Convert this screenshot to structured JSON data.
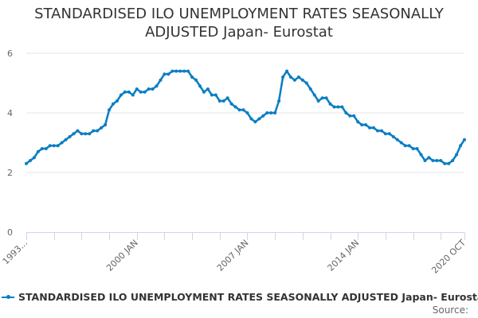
{
  "chart_data": {
    "type": "line",
    "title": "STANDARDISED ILO UNEMPLOYMENT RATES SEASONALLY ADJUSTED Japan- Eurostat",
    "xlabel": "",
    "ylabel": "",
    "ylim": [
      0,
      6
    ],
    "yticks": [
      "0",
      "2",
      "4",
      "6"
    ],
    "xrange": [
      "1993-01",
      "2020-10"
    ],
    "xtick_labels": [
      {
        "date": "1993-01",
        "label": "1993..."
      },
      {
        "date": "2000-01",
        "label": "2000 JAN"
      },
      {
        "date": "2007-01",
        "label": "2007 JAN"
      },
      {
        "date": "2014-01",
        "label": "2014 JAN"
      },
      {
        "date": "2020-10",
        "label": "2020 OCT"
      }
    ],
    "grid": true,
    "legend_placement": "bottom",
    "color": "#0a7ec2",
    "series": [
      {
        "name": "STANDARDISED ILO UNEMPLOYMENT RATES SEASONALLY ADJUSTED Japan- Eurostat",
        "x": [
          "1993-01",
          "1993-04",
          "1993-07",
          "1993-10",
          "1994-01",
          "1994-04",
          "1994-07",
          "1994-10",
          "1995-01",
          "1995-04",
          "1995-07",
          "1995-10",
          "1996-01",
          "1996-04",
          "1996-07",
          "1996-10",
          "1997-01",
          "1997-04",
          "1997-07",
          "1997-10",
          "1998-01",
          "1998-04",
          "1998-07",
          "1998-10",
          "1999-01",
          "1999-04",
          "1999-07",
          "1999-10",
          "2000-01",
          "2000-04",
          "2000-07",
          "2000-10",
          "2001-01",
          "2001-04",
          "2001-07",
          "2001-10",
          "2002-01",
          "2002-04",
          "2002-07",
          "2002-10",
          "2003-01",
          "2003-04",
          "2003-07",
          "2003-10",
          "2004-01",
          "2004-04",
          "2004-07",
          "2004-10",
          "2005-01",
          "2005-04",
          "2005-07",
          "2005-10",
          "2006-01",
          "2006-04",
          "2006-07",
          "2006-10",
          "2007-01",
          "2007-04",
          "2007-07",
          "2007-10",
          "2008-01",
          "2008-04",
          "2008-07",
          "2008-10",
          "2009-01",
          "2009-04",
          "2009-07",
          "2009-10",
          "2010-01",
          "2010-04",
          "2010-07",
          "2010-10",
          "2011-01",
          "2011-04",
          "2011-07",
          "2011-10",
          "2012-01",
          "2012-04",
          "2012-07",
          "2012-10",
          "2013-01",
          "2013-04",
          "2013-07",
          "2013-10",
          "2014-01",
          "2014-04",
          "2014-07",
          "2014-10",
          "2015-01",
          "2015-04",
          "2015-07",
          "2015-10",
          "2016-01",
          "2016-04",
          "2016-07",
          "2016-10",
          "2017-01",
          "2017-04",
          "2017-07",
          "2017-10",
          "2018-01",
          "2018-04",
          "2018-07",
          "2018-10",
          "2019-01",
          "2019-04",
          "2019-07",
          "2019-10",
          "2020-01",
          "2020-04",
          "2020-07",
          "2020-10"
        ],
        "values": [
          2.3,
          2.4,
          2.5,
          2.7,
          2.8,
          2.8,
          2.9,
          2.9,
          2.9,
          3.0,
          3.1,
          3.2,
          3.3,
          3.4,
          3.3,
          3.3,
          3.3,
          3.4,
          3.4,
          3.5,
          3.6,
          4.1,
          4.3,
          4.4,
          4.6,
          4.7,
          4.7,
          4.6,
          4.8,
          4.7,
          4.7,
          4.8,
          4.8,
          4.9,
          5.1,
          5.3,
          5.3,
          5.4,
          5.4,
          5.4,
          5.4,
          5.4,
          5.2,
          5.1,
          4.9,
          4.7,
          4.8,
          4.6,
          4.6,
          4.4,
          4.4,
          4.5,
          4.3,
          4.2,
          4.1,
          4.1,
          4.0,
          3.8,
          3.7,
          3.8,
          3.9,
          4.0,
          4.0,
          4.0,
          4.4,
          5.2,
          5.4,
          5.2,
          5.1,
          5.2,
          5.1,
          5.0,
          4.8,
          4.6,
          4.4,
          4.5,
          4.5,
          4.3,
          4.2,
          4.2,
          4.2,
          4.0,
          3.9,
          3.9,
          3.7,
          3.6,
          3.6,
          3.5,
          3.5,
          3.4,
          3.4,
          3.3,
          3.3,
          3.2,
          3.1,
          3.0,
          2.9,
          2.9,
          2.8,
          2.8,
          2.6,
          2.4,
          2.5,
          2.4,
          2.4,
          2.4,
          2.3,
          2.3,
          2.4,
          2.6,
          2.9,
          3.1
        ]
      }
    ],
    "source_label": "Source:"
  }
}
